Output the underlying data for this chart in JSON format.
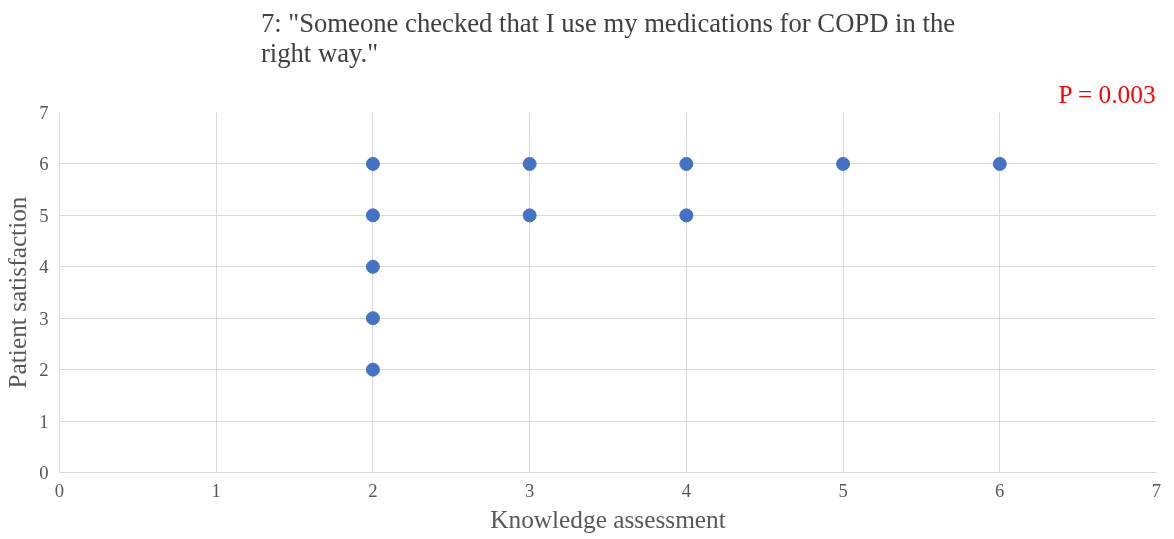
{
  "chart_data": {
    "type": "scatter",
    "title": "7: \"Someone checked that I use my medications for COPD in the right way.\"",
    "xlabel": "Knowledge assessment",
    "ylabel": "Patient satisfaction",
    "annotations": [
      "P = 0.003"
    ],
    "series": [
      {
        "color": "#4472c4",
        "x": [
          2,
          2,
          2,
          2,
          2,
          3,
          3,
          4,
          4,
          5,
          6
        ],
        "values": [
          6,
          5,
          4,
          3,
          2,
          6,
          5,
          6,
          5,
          6,
          6
        ]
      }
    ],
    "xlim": [
      0,
      7
    ],
    "ylim": [
      0,
      7
    ],
    "xticks": [
      0,
      1,
      2,
      3,
      4,
      5,
      6,
      7
    ],
    "yticks": [
      0,
      1,
      2,
      3,
      4,
      5,
      6,
      7
    ],
    "grid": true,
    "marker": "circle"
  }
}
